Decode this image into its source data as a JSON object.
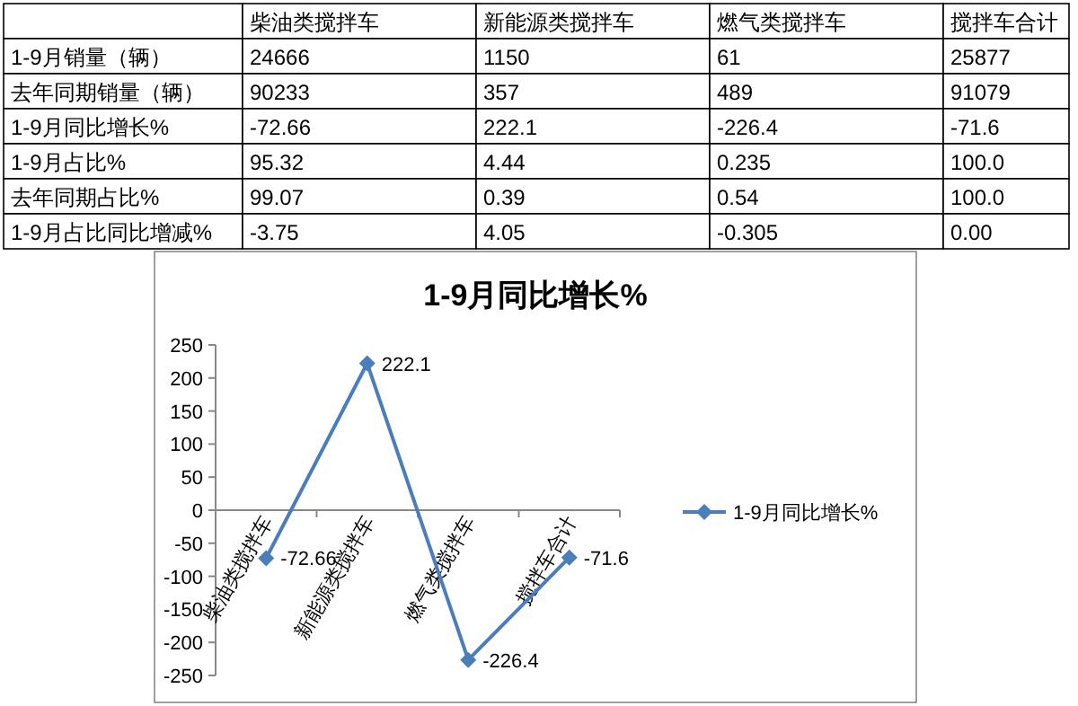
{
  "chart_data": [
    {
      "type": "other",
      "categories": [
        null,
        "柴油类搅拌车",
        "新能源类搅拌车",
        "燃气类搅拌车",
        "搅拌车合计"
      ],
      "y_categories": [
        "1-9月销量（辆）",
        "去年同期销量（辆）",
        "1-9月同比增长%",
        "1-9月占比%",
        "去年同期占比%",
        "1-9月占比同比增减%"
      ],
      "cell_labels": [
        [
          "24666",
          "1150",
          "61",
          "25877"
        ],
        [
          "90233",
          "357",
          "489",
          "91079"
        ],
        [
          "-72.66",
          "222.1",
          "-226.4",
          "-71.6"
        ],
        [
          "95.32",
          "4.44",
          "0.235",
          "100.0"
        ],
        [
          "99.07",
          "0.39",
          "0.54",
          "100.0"
        ],
        [
          "-3.75",
          "4.05",
          "-0.305",
          "0.00"
        ]
      ]
    },
    {
      "type": "line",
      "title": "1-9月同比增长%",
      "categories": [
        "柴油类搅拌车",
        "新能源类搅拌车",
        "燃气类搅拌车",
        "搅拌车合计"
      ],
      "series": [
        {
          "name": "1-9月同比增长%",
          "color": "#4a7ebb",
          "values": [
            -72.66,
            222.1,
            -226.4,
            -71.6
          ]
        }
      ],
      "ylim": [
        -250,
        250
      ],
      "yticks": [
        -250,
        -200,
        -150,
        -100,
        -50,
        0,
        50,
        100,
        150,
        200,
        250
      ],
      "marker": "diamond",
      "data_labels": true,
      "legend": "right",
      "grid": false
    }
  ]
}
